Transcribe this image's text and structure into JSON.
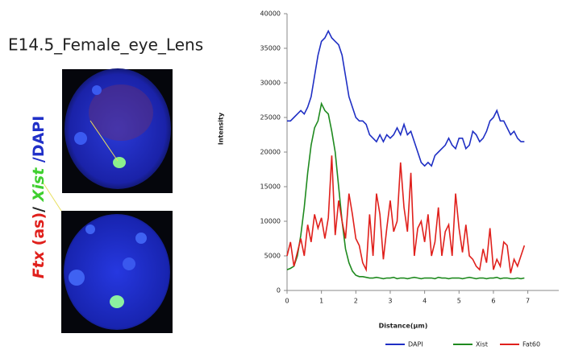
{
  "figure_title": "E14.5_Female_eye_Lens",
  "stain_label": [
    {
      "text": "Ftx",
      "color": "#e0201c"
    },
    {
      "text": " (as)",
      "color": "#e0201c"
    },
    {
      "text": "/ ",
      "color": "#222222"
    },
    {
      "text": "Xist",
      "color": "#3fcf2f"
    },
    {
      "text": " /DAPI",
      "color": "#2030c8"
    }
  ],
  "chart_data": {
    "type": "line",
    "y_label": "Intensity",
    "x_label": "Distance(μm)",
    "xlim": [
      0,
      7.9
    ],
    "xticks": [
      0,
      1,
      2,
      3,
      4,
      5,
      6,
      7
    ],
    "ylim": [
      0,
      40000
    ],
    "yticks": [
      0,
      5000,
      10000,
      15000,
      20000,
      25000,
      30000,
      35000,
      40000
    ],
    "legend": "bottom",
    "x": [
      0,
      0.1,
      0.2,
      0.3,
      0.4,
      0.5,
      0.6,
      0.7,
      0.8,
      0.9,
      1,
      1.1,
      1.2,
      1.3,
      1.4,
      1.5,
      1.6,
      1.7,
      1.8,
      1.9,
      2,
      2.1,
      2.2,
      2.3,
      2.4,
      2.5,
      2.6,
      2.7,
      2.8,
      2.9,
      3,
      3.1,
      3.2,
      3.3,
      3.4,
      3.5,
      3.6,
      3.7,
      3.8,
      3.9,
      4,
      4.1,
      4.2,
      4.3,
      4.4,
      4.5,
      4.6,
      4.7,
      4.8,
      4.9,
      5,
      5.1,
      5.2,
      5.3,
      5.4,
      5.5,
      5.6,
      5.7,
      5.8,
      5.9,
      6,
      6.1,
      6.2,
      6.3,
      6.4,
      6.5,
      6.6,
      6.7,
      6.8,
      6.9
    ],
    "series": [
      {
        "name": "DAPI",
        "color": "#1f2fc4",
        "values": [
          24500,
          24500,
          25000,
          25500,
          26000,
          25500,
          26500,
          28000,
          31000,
          34000,
          36000,
          36500,
          37500,
          36500,
          36000,
          35500,
          34000,
          31000,
          28000,
          26500,
          25000,
          24500,
          24500,
          24000,
          22500,
          22000,
          21500,
          22500,
          21500,
          22500,
          22000,
          22500,
          23500,
          22500,
          24000,
          22500,
          23000,
          21500,
          20000,
          18500,
          18000,
          18500,
          18000,
          19500,
          20000,
          20500,
          21000,
          22000,
          21000,
          20500,
          22000,
          22000,
          20500,
          21000,
          23000,
          22500,
          21500,
          22000,
          23000,
          24500,
          25000,
          26000,
          24500,
          24500,
          23500,
          22500,
          23000,
          22000,
          21500,
          21500
        ]
      },
      {
        "name": "Xist",
        "color": "#1f8a1f",
        "values": [
          3000,
          3200,
          3500,
          5000,
          8000,
          12000,
          17000,
          21000,
          23500,
          24500,
          27000,
          26000,
          25500,
          23000,
          20000,
          15000,
          10000,
          6000,
          4000,
          2800,
          2200,
          2000,
          2000,
          1900,
          1800,
          1800,
          1900,
          1800,
          1700,
          1800,
          1800,
          1900,
          1700,
          1800,
          1800,
          1700,
          1800,
          1900,
          1800,
          1700,
          1800,
          1800,
          1800,
          1700,
          1900,
          1800,
          1800,
          1700,
          1800,
          1800,
          1800,
          1700,
          1800,
          1900,
          1800,
          1700,
          1800,
          1800,
          1700,
          1800,
          1800,
          1900,
          1700,
          1800,
          1800,
          1700,
          1700,
          1800,
          1700,
          1800
        ]
      },
      {
        "name": "Fat60",
        "color": "#e0201c",
        "values": [
          5000,
          7000,
          3500,
          5500,
          7500,
          5000,
          9500,
          7000,
          11000,
          9000,
          10500,
          7500,
          10500,
          19500,
          8000,
          13000,
          10000,
          7500,
          14000,
          11000,
          7500,
          6500,
          4000,
          3000,
          11000,
          5000,
          14000,
          11000,
          4500,
          9000,
          13000,
          8500,
          10000,
          18500,
          12000,
          8500,
          17000,
          5000,
          9000,
          10000,
          7000,
          11000,
          5000,
          7000,
          12000,
          5000,
          8500,
          9500,
          5000,
          14000,
          9000,
          5500,
          9500,
          5000,
          4500,
          3500,
          3000,
          6000,
          4000,
          9000,
          3000,
          4500,
          3500,
          7000,
          6500,
          2500,
          4500,
          3500,
          5000,
          6500
        ]
      }
    ]
  }
}
